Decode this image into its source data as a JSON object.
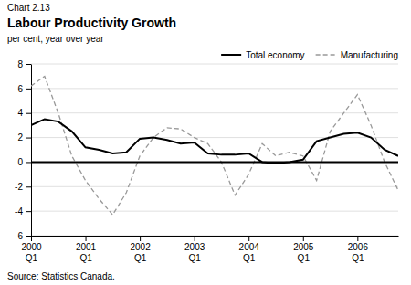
{
  "chart_data": {
    "type": "line",
    "title": "Labour Productivity Growth",
    "ylabel": "per cent, year over year",
    "annotations": [
      "Chart 2.13",
      "Source: Statistics Canada."
    ],
    "categories": [
      "2000\nQ1",
      null,
      null,
      null,
      "2001\nQ1",
      null,
      null,
      null,
      "2002\nQ1",
      null,
      null,
      null,
      "2003\nQ1",
      null,
      null,
      null,
      "2004\nQ1",
      null,
      null,
      null,
      "2005\nQ1",
      null,
      null,
      null,
      "2006\nQ1",
      null,
      null,
      null
    ],
    "series": [
      {
        "name": "Total economy",
        "color": "#000000",
        "line_style": "solid",
        "values": [
          3.0,
          3.5,
          3.3,
          2.5,
          1.2,
          1.0,
          0.7,
          0.8,
          1.9,
          2.0,
          1.8,
          1.5,
          1.6,
          0.7,
          0.6,
          0.6,
          0.7,
          0.0,
          -0.1,
          0.0,
          0.2,
          1.7,
          2.0,
          2.3,
          2.4,
          2.0,
          1.0,
          0.5
        ]
      },
      {
        "name": "Manufacturing",
        "color": "#999999",
        "line_style": "dashed",
        "values": [
          6.2,
          7.0,
          4.0,
          0.5,
          -1.5,
          -3.0,
          -4.3,
          -2.5,
          0.5,
          2.0,
          2.8,
          2.7,
          2.0,
          1.5,
          0.0,
          -2.7,
          -1.0,
          1.5,
          0.5,
          0.8,
          0.5,
          -1.5,
          2.5,
          4.0,
          5.5,
          3.0,
          0.0,
          -2.3
        ]
      }
    ],
    "ylim": [
      -6,
      8
    ],
    "yticks": [
      -6,
      -4,
      -2,
      0,
      2,
      4,
      6,
      8
    ],
    "grid": true,
    "legend": "top-right"
  }
}
